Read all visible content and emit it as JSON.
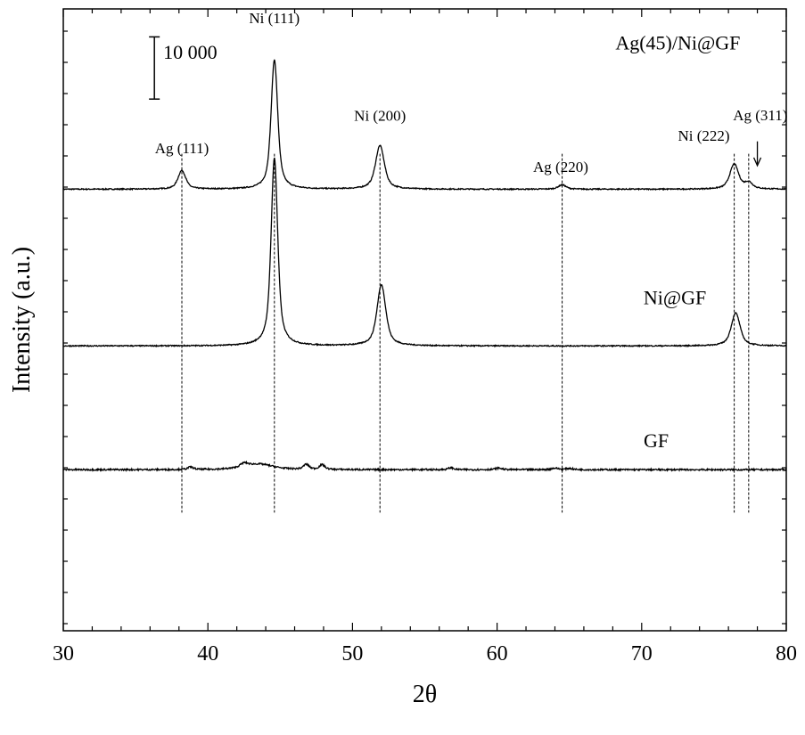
{
  "chart_data": {
    "type": "line",
    "xlabel": "2θ",
    "ylabel": "Intensity (a.u.)",
    "xlim": [
      30,
      80
    ],
    "ylim": [
      -15000,
      85000
    ],
    "x_ticks": [
      30,
      40,
      50,
      60,
      70,
      80
    ],
    "x_tick_labels": [
      "30",
      "40",
      "50",
      "60",
      "70",
      "80"
    ],
    "scale_bar": {
      "label": "10 000",
      "value": 10000
    },
    "series": [
      {
        "name": "Ag(45)/Ni@GF",
        "color": "#000000",
        "baseline": 56000,
        "peaks": [
          {
            "x": 38.2,
            "height": 3000,
            "width": 0.35
          },
          {
            "x": 44.6,
            "height": 20800,
            "width": 0.3
          },
          {
            "x": 51.9,
            "height": 7000,
            "width": 0.4
          },
          {
            "x": 64.5,
            "height": 700,
            "width": 0.35
          },
          {
            "x": 76.4,
            "height": 4000,
            "width": 0.4
          },
          {
            "x": 77.4,
            "height": 1000,
            "width": 0.35
          }
        ]
      },
      {
        "name": "Ni@GF",
        "color": "#000000",
        "baseline": 30800,
        "peaks": [
          {
            "x": 44.6,
            "height": 30200,
            "width": 0.3
          },
          {
            "x": 52.0,
            "height": 9800,
            "width": 0.4
          },
          {
            "x": 76.5,
            "height": 5300,
            "width": 0.4
          }
        ]
      },
      {
        "name": "GF",
        "color": "#000000",
        "baseline": 10900,
        "peaks": [
          {
            "x": 38.8,
            "height": 400,
            "width": 0.25
          },
          {
            "x": 42.5,
            "height": 600,
            "width": 0.35
          },
          {
            "x": 43.5,
            "height": 900,
            "width": 1.3
          },
          {
            "x": 46.8,
            "height": 800,
            "width": 0.25
          },
          {
            "x": 47.9,
            "height": 750,
            "width": 0.25
          },
          {
            "x": 56.8,
            "height": 300,
            "width": 0.25
          },
          {
            "x": 60.1,
            "height": 250,
            "width": 0.3
          },
          {
            "x": 64.0,
            "height": 250,
            "width": 0.3
          },
          {
            "x": 65.0,
            "height": 200,
            "width": 0.3
          }
        ]
      }
    ],
    "reference_lines": [
      38.2,
      44.6,
      51.9,
      64.5,
      76.4,
      77.4
    ],
    "peak_labels": [
      {
        "text": "Ag (111)",
        "x": 38.2,
        "y": 61800
      },
      {
        "text": "Ni (111)",
        "x": 44.6,
        "y": 82700
      },
      {
        "text": "Ni (200)",
        "x": 51.9,
        "y": 67000
      },
      {
        "text": "Ag (220)",
        "x": 64.4,
        "y": 58800
      },
      {
        "text": "Ni (222)",
        "x": 74.3,
        "y": 63800
      },
      {
        "text": "Ag (311)",
        "x": 78.2,
        "y": 67100
      }
    ],
    "arrow": {
      "x": 78.0,
      "y_from": 63700,
      "y_to": 59800
    },
    "series_labels": [
      {
        "text": "Ag(45)/Ni@GF",
        "x": 72.5,
        "y": 78500
      },
      {
        "text": "Ni@GF",
        "x": 72.3,
        "y": 37500
      },
      {
        "text": "GF",
        "x": 71.0,
        "y": 14500
      }
    ],
    "grid": false,
    "legend": "none"
  }
}
